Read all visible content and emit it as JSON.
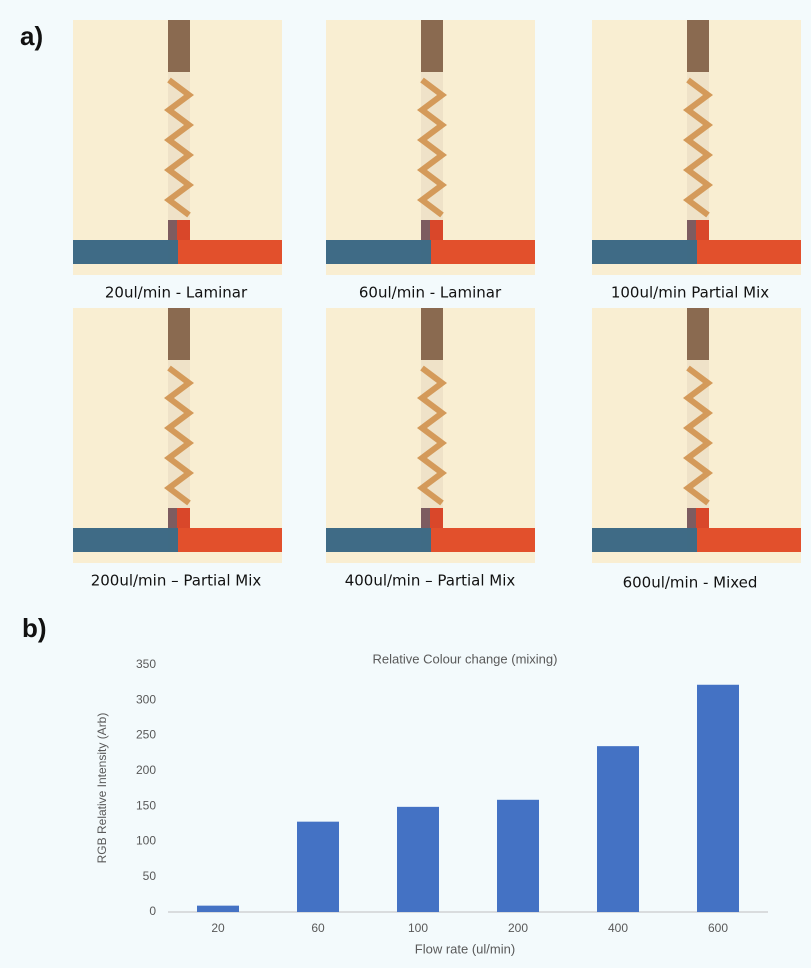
{
  "figure": {
    "label_a": "a)",
    "label_b": "b)",
    "captions": [
      "20ul/min - Laminar",
      "60ul/min - Laminar",
      "100ul/min Partial Mix",
      "200ul/min – Partial Mix",
      "400ul/min – Partial Mix",
      "600ul/min - Mixed"
    ]
  },
  "chart_data": {
    "type": "bar",
    "title": "Relative Colour change (mixing)",
    "x_label": "Flow rate (ul/min)",
    "y_label": "RGB Relative Intensity (Arb)",
    "categories": [
      "20",
      "60",
      "100",
      "200",
      "400",
      "600"
    ],
    "values": [
      9,
      128,
      149,
      159,
      235,
      322
    ],
    "color": "#4472c4",
    "ylim": [
      0,
      350
    ],
    "yticks": [
      0,
      50,
      100,
      150,
      200,
      250,
      300,
      350
    ],
    "grid": false
  }
}
